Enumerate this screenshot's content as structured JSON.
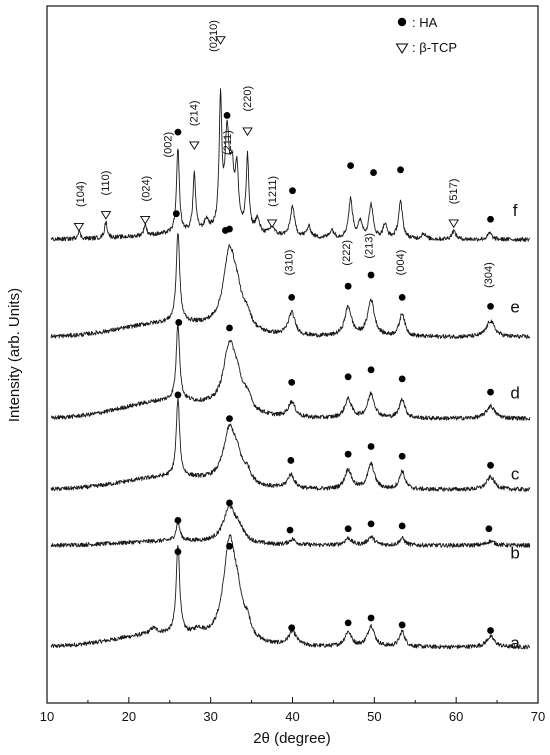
{
  "chart_data": {
    "type": "line",
    "title": "",
    "xlabel": "2θ (degree)",
    "ylabel": "Intensity (arb. Units)",
    "xlim": [
      10,
      70
    ],
    "xticks": [
      10,
      20,
      30,
      40,
      50,
      60,
      70
    ],
    "ylim": [
      0,
      100
    ],
    "grid": false,
    "legend": {
      "placement": "top-right",
      "entries": [
        {
          "marker": "filled-circle",
          "label": ": HA"
        },
        {
          "marker": "open-triangle-down",
          "label": ": β-TCP"
        }
      ]
    },
    "series": [
      {
        "name": "a",
        "baseline": 8.0,
        "peaks": [
          [
            26.0,
            12.8,
            0.25
          ],
          [
            32.3,
            13.8,
            0.9
          ],
          [
            33.3,
            4.0,
            0.7
          ],
          [
            34.5,
            2.0,
            0.5
          ],
          [
            40.0,
            2.0,
            0.6
          ],
          [
            46.8,
            2.1,
            0.5
          ],
          [
            49.6,
            3.0,
            0.5
          ],
          [
            53.4,
            2.2,
            0.4
          ],
          [
            64.2,
            1.5,
            0.6
          ],
          [
            23.0,
            0.8,
            0.5
          ],
          [
            28.5,
            0.8,
            0.6
          ]
        ],
        "hump": [
          24,
          1.8,
          8
        ]
      },
      {
        "name": "b",
        "baseline": 22.6,
        "peaks": [
          [
            26.0,
            2.5,
            0.3
          ],
          [
            32.3,
            5.0,
            0.9
          ],
          [
            33.5,
            1.5,
            0.7
          ],
          [
            40.0,
            0.8,
            0.5
          ],
          [
            46.8,
            1.0,
            0.5
          ],
          [
            49.6,
            1.2,
            0.5
          ],
          [
            53.4,
            1.0,
            0.4
          ],
          [
            64.2,
            0.6,
            0.6
          ]
        ],
        "hump": [
          25,
          0.6,
          8
        ]
      },
      {
        "name": "c",
        "baseline": 30.6,
        "peaks": [
          [
            26.0,
            11.0,
            0.25
          ],
          [
            32.3,
            7.5,
            0.9
          ],
          [
            33.3,
            2.5,
            0.7
          ],
          [
            34.5,
            1.5,
            0.5
          ],
          [
            39.8,
            2.0,
            0.5
          ],
          [
            46.8,
            2.8,
            0.5
          ],
          [
            49.6,
            3.6,
            0.5
          ],
          [
            53.4,
            2.6,
            0.4
          ],
          [
            64.2,
            1.8,
            0.6
          ]
        ],
        "hump": [
          25,
          1.8,
          8
        ]
      },
      {
        "name": "d",
        "baseline": 40.8,
        "peaks": [
          [
            26.0,
            11.0,
            0.25
          ],
          [
            32.3,
            9.0,
            0.9
          ],
          [
            33.3,
            3.0,
            0.7
          ],
          [
            34.5,
            1.8,
            0.5
          ],
          [
            39.9,
            2.2,
            0.5
          ],
          [
            46.8,
            2.7,
            0.5
          ],
          [
            49.6,
            3.5,
            0.5
          ],
          [
            53.4,
            2.8,
            0.4
          ],
          [
            64.2,
            1.8,
            0.6
          ]
        ],
        "hump": [
          25,
          2.5,
          8
        ]
      },
      {
        "name": "e",
        "baseline": 52.5,
        "peaks": [
          [
            26.0,
            12.8,
            0.25
          ],
          [
            32.3,
            11.0,
            0.9
          ],
          [
            33.3,
            3.3,
            0.7
          ],
          [
            34.5,
            1.8,
            0.5
          ],
          [
            39.9,
            3.3,
            0.5
          ],
          [
            46.8,
            4.2,
            0.5
          ],
          [
            49.6,
            5.2,
            0.5
          ],
          [
            53.4,
            3.3,
            0.4
          ],
          [
            64.2,
            2.3,
            0.6
          ]
        ],
        "hump": [
          25,
          2.0,
          8
        ]
      },
      {
        "name": "f",
        "baseline": 66.5,
        "peaks": [
          [
            13.9,
            1.1,
            0.2
          ],
          [
            17.2,
            2.3,
            0.2
          ],
          [
            22.0,
            1.6,
            0.2
          ],
          [
            26.0,
            12.2,
            0.2
          ],
          [
            28.0,
            8.3,
            0.2
          ],
          [
            29.5,
            1.5,
            0.3
          ],
          [
            31.2,
            18.2,
            0.2
          ],
          [
            32.0,
            13.2,
            0.3
          ],
          [
            32.6,
            7.5,
            0.3
          ],
          [
            33.2,
            8.0,
            0.25
          ],
          [
            34.5,
            10.7,
            0.2
          ],
          [
            35.7,
            2.0,
            0.3
          ],
          [
            37.5,
            1.2,
            0.3
          ],
          [
            40.0,
            4.3,
            0.3
          ],
          [
            42.0,
            1.5,
            0.3
          ],
          [
            44.8,
            1.2,
            0.3
          ],
          [
            47.1,
            5.6,
            0.3
          ],
          [
            48.3,
            2.3,
            0.3
          ],
          [
            49.6,
            4.8,
            0.3
          ],
          [
            51.3,
            2.0,
            0.3
          ],
          [
            53.2,
            5.3,
            0.3
          ],
          [
            56.0,
            0.8,
            0.3
          ],
          [
            59.7,
            1.2,
            0.3
          ],
          [
            64.1,
            0.9,
            0.3
          ]
        ],
        "hump": [
          30,
          1.0,
          10
        ]
      }
    ],
    "markers": [
      {
        "series": "a",
        "type": "HA",
        "x": [
          26.0,
          32.3,
          39.9,
          46.8,
          49.6,
          53.4,
          64.2
        ],
        "y": [
          21.7,
          22.5,
          10.8,
          11.5,
          12.2,
          11.2,
          10.4
        ]
      },
      {
        "series": "b",
        "type": "HA",
        "x": [
          26.0,
          32.3,
          39.7,
          46.8,
          49.6,
          53.4,
          64.0
        ],
        "y": [
          26.2,
          28.7,
          24.8,
          25.0,
          25.7,
          25.4,
          25.0
        ]
      },
      {
        "series": "c",
        "type": "HA",
        "x": [
          26.0,
          32.3,
          39.8,
          46.8,
          49.6,
          53.4,
          64.2
        ],
        "y": [
          44.2,
          40.8,
          34.8,
          35.7,
          36.8,
          35.4,
          34.1
        ]
      },
      {
        "series": "d",
        "type": "HA",
        "x": [
          26.1,
          32.3,
          39.9,
          46.8,
          49.6,
          53.4,
          64.2
        ],
        "y": [
          54.6,
          53.8,
          46.0,
          46.8,
          47.8,
          46.5,
          44.6
        ]
      },
      {
        "series": "e",
        "type": "HA",
        "x": [
          25.8,
          32.3,
          39.9,
          46.8,
          49.6,
          53.4,
          64.2
        ],
        "y": [
          70.2,
          68.0,
          58.2,
          59.8,
          61.4,
          58.2,
          56.9
        ]
      },
      {
        "series": "f",
        "type": "HA",
        "x": [
          26.0,
          31.8,
          32.0,
          40.0,
          47.1,
          49.9,
          53.2,
          64.2
        ],
        "y": [
          81.9,
          67.8,
          84.3,
          73.5,
          77.1,
          76.1,
          76.5,
          69.4
        ]
      },
      {
        "series": "f",
        "type": "TCP",
        "x": [
          13.9,
          17.2,
          22.0,
          28.0,
          31.2,
          34.5,
          37.5,
          59.7
        ],
        "y": [
          68.3,
          70.0,
          69.3,
          80.0,
          95.1,
          82.0,
          68.8,
          68.8
        ]
      }
    ],
    "peak_labels": [
      {
        "text": "(104)",
        "x": 14.5,
        "y": 73.0
      },
      {
        "text": "(110)",
        "x": 17.6,
        "y": 74.6
      },
      {
        "text": "(024)",
        "x": 22.5,
        "y": 73.8
      },
      {
        "text": "(214)",
        "x": 28.4,
        "y": 84.6
      },
      {
        "text": "(0210)",
        "x": 30.8,
        "y": 95.7
      },
      {
        "text": "(220)",
        "x": 34.9,
        "y": 86.7
      },
      {
        "text": "(1211)",
        "x": 38.0,
        "y": 73.4
      },
      {
        "text": "(517)",
        "x": 60.1,
        "y": 73.4
      },
      {
        "text": "(002)",
        "x": 25.2,
        "y": 80.1
      },
      {
        "text": "(211)",
        "x": 32.5,
        "y": 80.4
      },
      {
        "text": "(310)",
        "x": 40.0,
        "y": 63.2
      },
      {
        "text": "(222)",
        "x": 47.0,
        "y": 64.6
      },
      {
        "text": "(213)",
        "x": 49.8,
        "y": 65.6
      },
      {
        "text": "(004)",
        "x": 53.6,
        "y": 63.2
      },
      {
        "text": "(304)",
        "x": 64.4,
        "y": 61.4
      }
    ],
    "curve_labels": [
      {
        "text": "a",
        "x": 67.2,
        "y": 7.8
      },
      {
        "text": "b",
        "x": 67.2,
        "y": 20.7
      },
      {
        "text": "c",
        "x": 67.2,
        "y": 32.1
      },
      {
        "text": "d",
        "x": 67.2,
        "y": 43.7
      },
      {
        "text": "e",
        "x": 67.2,
        "y": 56.0
      },
      {
        "text": "f",
        "x": 67.2,
        "y": 69.9
      }
    ]
  }
}
